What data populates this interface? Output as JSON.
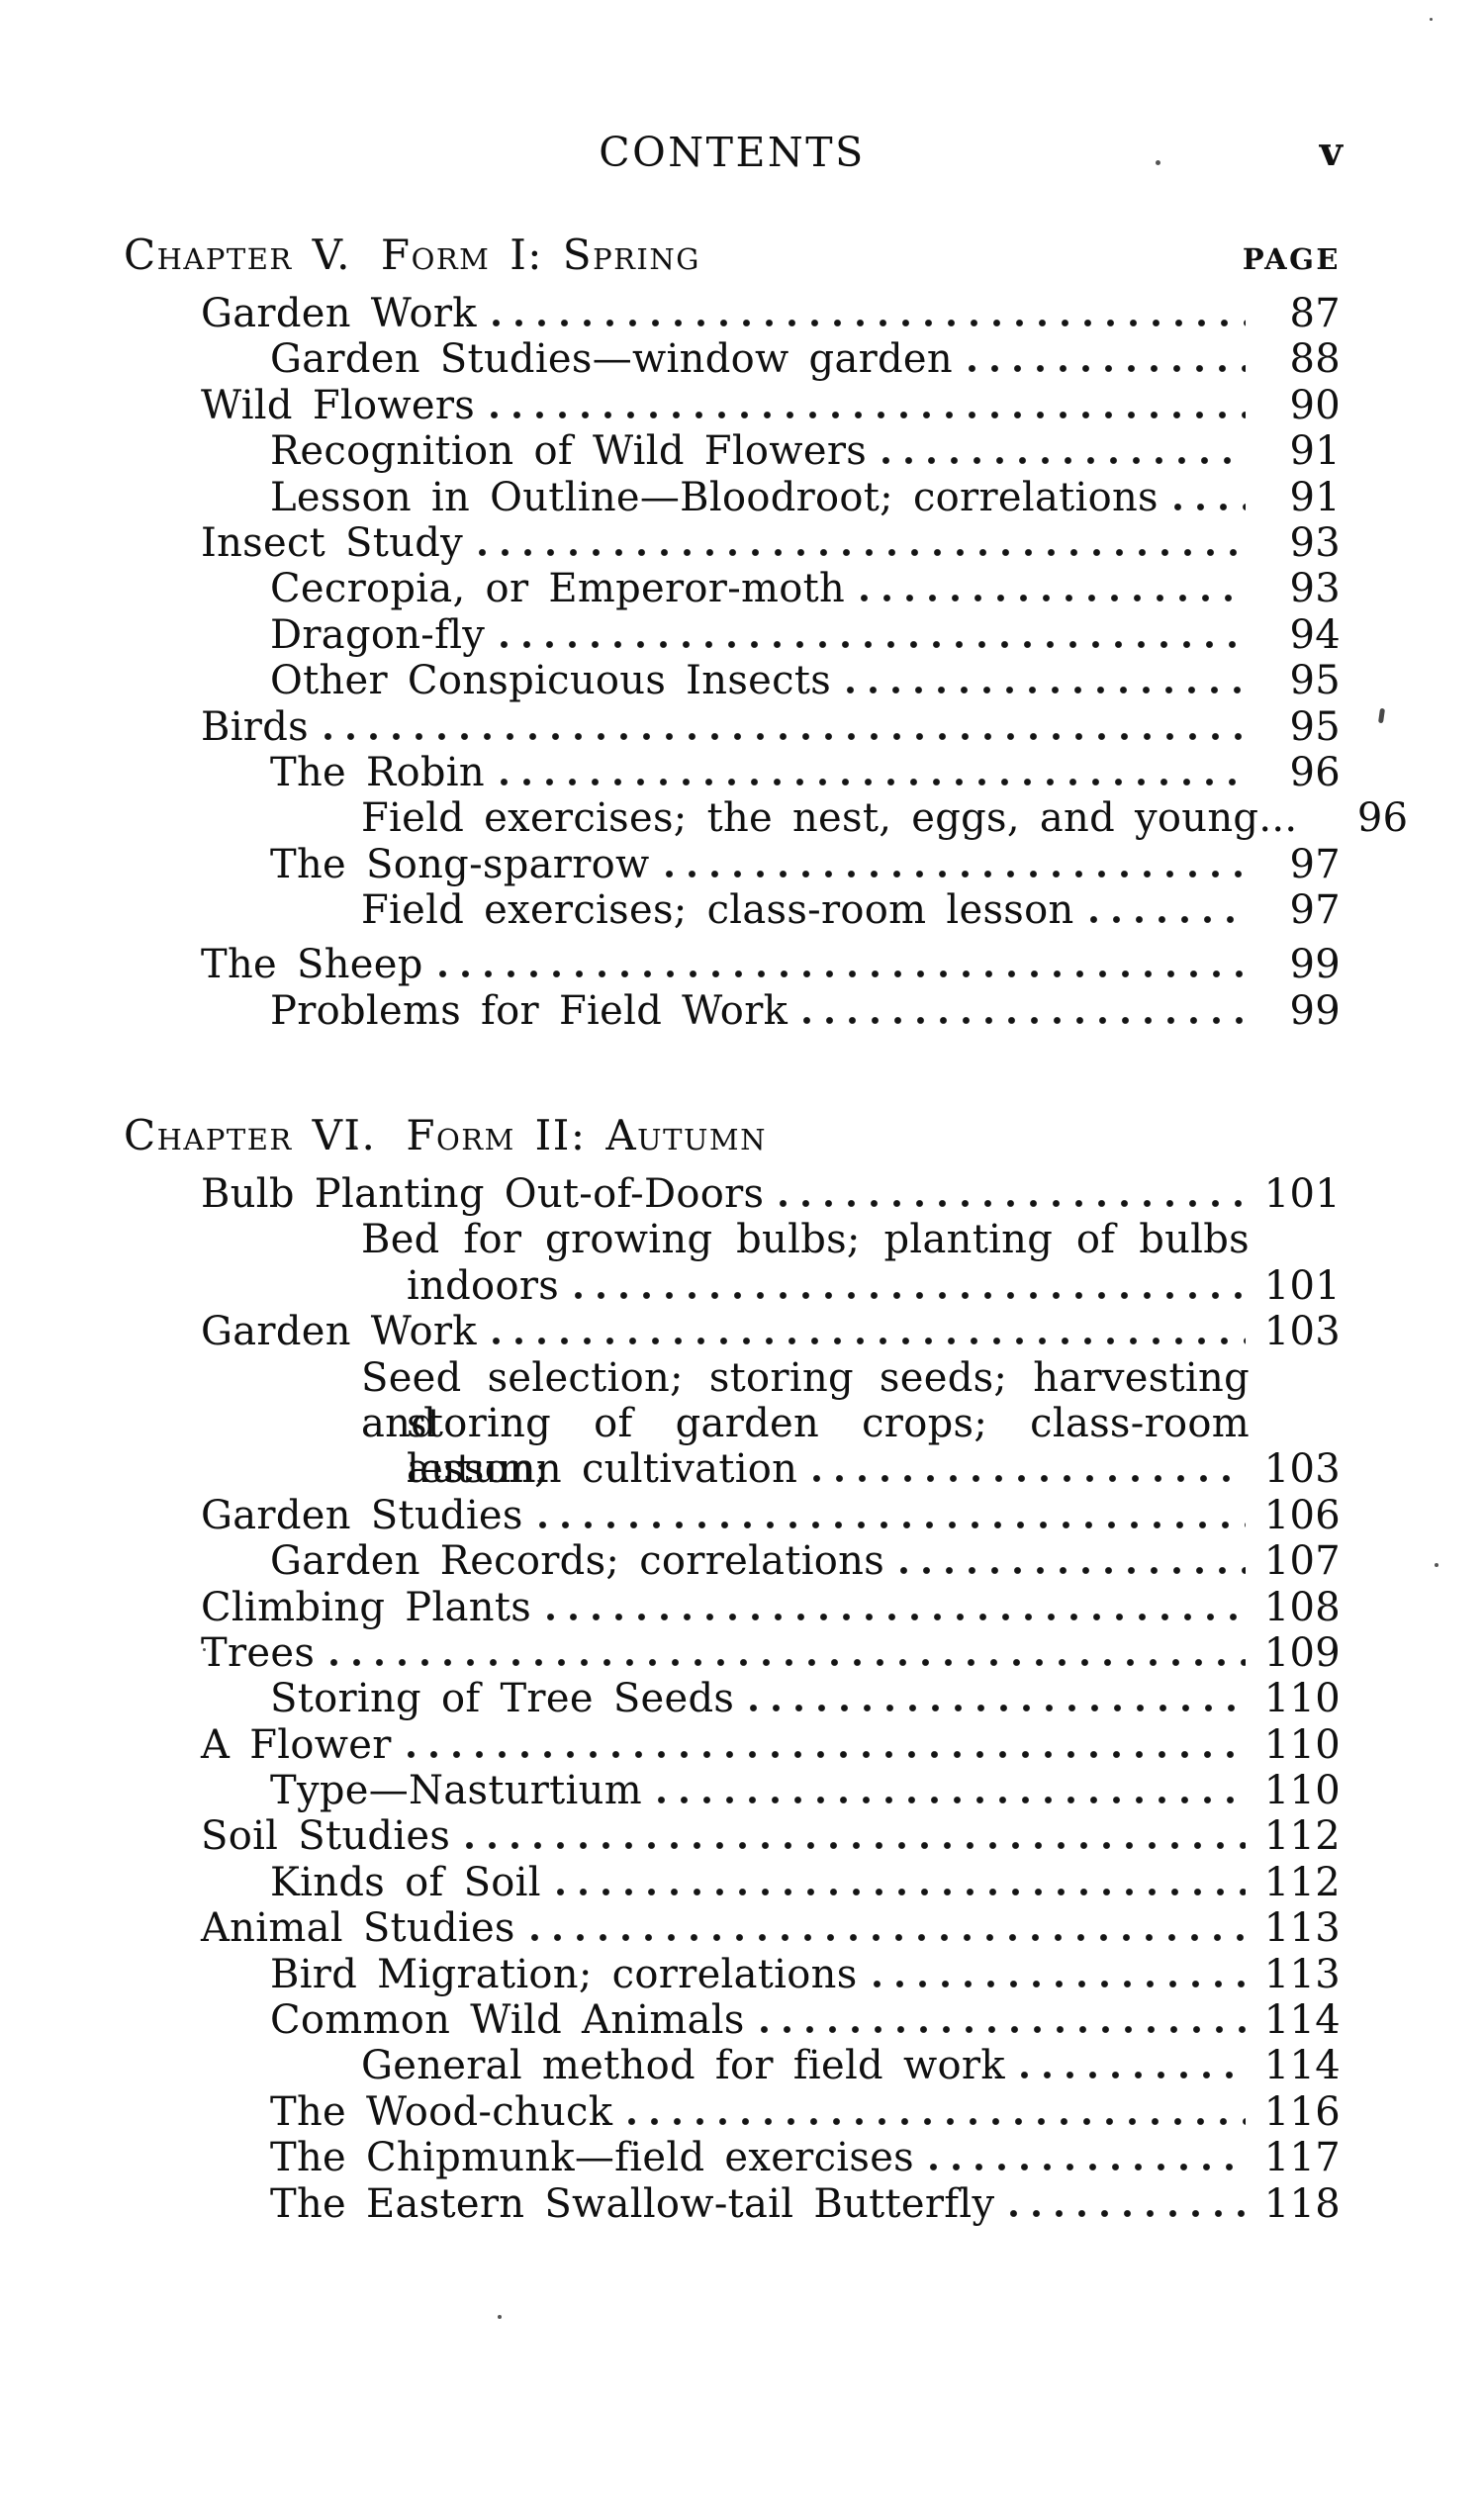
{
  "header": {
    "title": "CONTENTS",
    "folio": "v"
  },
  "colors": {
    "ink": "#101010",
    "paper": "#ffffff"
  },
  "chapters": [
    {
      "heading": "Chapter V.",
      "subheading": "Form I: Spring",
      "page_label": "PAGE",
      "rows": [
        {
          "text": "Garden Work",
          "page": "87",
          "indent": 1
        },
        {
          "text": "Garden Studies—window garden",
          "page": "88",
          "indent": 2
        },
        {
          "text": "Wild Flowers",
          "page": "90",
          "indent": 1
        },
        {
          "text": "Recognition of Wild Flowers",
          "page": "91",
          "indent": 2
        },
        {
          "text": "Lesson in Outline—Bloodroot; correlations",
          "page": "91",
          "indent": 2
        },
        {
          "text": "Insect Study",
          "page": "93",
          "indent": 1
        },
        {
          "text": "Cecropia, or Emperor-moth",
          "page": "93",
          "indent": 2
        },
        {
          "text": "Dragon-fly",
          "page": "94",
          "indent": 2
        },
        {
          "text": "Other Conspicuous Insects",
          "page": "95",
          "indent": 2
        },
        {
          "text": "Birds",
          "page": "95",
          "indent": 1
        },
        {
          "text": "The Robin",
          "page": "96",
          "indent": 2
        },
        {
          "text": "Field exercises; the nest, eggs, and young...",
          "page": "96",
          "indent": 3,
          "leader": false
        },
        {
          "text": "The Song-sparrow",
          "page": "97",
          "indent": 2
        },
        {
          "text": "Field exercises; class-room lesson",
          "page": "97",
          "indent": 3
        },
        {
          "text": "The Sheep",
          "page": "99",
          "indent": 1,
          "gap": true
        },
        {
          "text": "Problems for Field Work",
          "page": "99",
          "indent": 2
        }
      ]
    },
    {
      "heading": "Chapter VI.",
      "subheading": "Form II: Autumn",
      "rows": [
        {
          "text": "Bulb Planting Out-of-Doors",
          "page": "101",
          "indent": 1
        },
        {
          "text": "Bed for growing bulbs; planting of bulbs",
          "indent": 3,
          "justify": true
        },
        {
          "text": "indoors",
          "page": "101",
          "indent": 4
        },
        {
          "text": "Garden Work",
          "page": "103",
          "indent": 1
        },
        {
          "text": "Seed selection; storing seeds; harvesting and",
          "indent": 3,
          "justify": true
        },
        {
          "text": "storing of garden crops; class-room lesson;",
          "indent": 4,
          "justify": true
        },
        {
          "text": "autumn cultivation",
          "page": "103",
          "indent": 4
        },
        {
          "text": "Garden Studies",
          "page": "106",
          "indent": 1
        },
        {
          "text": "Garden Records; correlations",
          "page": "107",
          "indent": 2
        },
        {
          "text": "Climbing Plants",
          "page": "108",
          "indent": 1
        },
        {
          "text": "Trees",
          "page": "109",
          "indent": 1
        },
        {
          "text": "Storing of Tree Seeds",
          "page": "110",
          "indent": 2
        },
        {
          "text": "A Flower",
          "page": "110",
          "indent": 1
        },
        {
          "text": "Type—Nasturtium",
          "page": "110",
          "indent": 2
        },
        {
          "text": "Soil Studies",
          "page": "112",
          "indent": 1
        },
        {
          "text": "Kinds of Soil",
          "page": "112",
          "indent": 2
        },
        {
          "text": "Animal Studies",
          "page": "113",
          "indent": 1
        },
        {
          "text": "Bird Migration; correlations",
          "page": "113",
          "indent": 2
        },
        {
          "text": "Common Wild Animals",
          "page": "114",
          "indent": 2
        },
        {
          "text": "General method for field work",
          "page": "114",
          "indent": 3
        },
        {
          "text": "The Wood-chuck",
          "page": "116",
          "indent": 2
        },
        {
          "text": "The Chipmunk—field exercises",
          "page": "117",
          "indent": 2
        },
        {
          "text": "The Eastern Swallow-tail Butterfly",
          "page": "118",
          "indent": 2
        }
      ]
    }
  ]
}
